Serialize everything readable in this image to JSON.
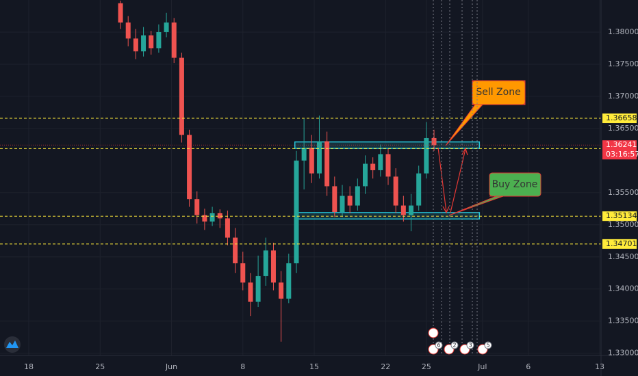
{
  "chart_data": {
    "type": "candlestick",
    "x": [
      27,
      27.75,
      28.5,
      29.25,
      30,
      30.75,
      31.5,
      32.25,
      33,
      33.75,
      34.5,
      35.25,
      36,
      36.75,
      37.5,
      38.25,
      39,
      39.75,
      40.5,
      41.25,
      42,
      42.75,
      43.5,
      44.25,
      45,
      45.75,
      46.5,
      47.25,
      48,
      48.75,
      49.5,
      50.25,
      51,
      51.75,
      52.5,
      53.25,
      54,
      54.75,
      55.5,
      56.25,
      57,
      57.75
    ],
    "open": [
      1.3845,
      1.3815,
      1.379,
      1.377,
      1.3795,
      1.3775,
      1.38,
      1.3815,
      1.376,
      1.364,
      1.354,
      1.3515,
      1.3505,
      1.3518,
      1.351,
      1.348,
      1.344,
      1.341,
      1.338,
      1.342,
      1.346,
      1.341,
      1.3385,
      1.344,
      1.36,
      1.362,
      1.358,
      1.363,
      1.356,
      1.352,
      1.3545,
      1.353,
      1.356,
      1.3595,
      1.3585,
      1.361,
      1.3575,
      1.353,
      1.3515,
      1.353,
      1.358,
      1.3635
    ],
    "high": [
      1.3849,
      1.3825,
      1.3805,
      1.3808,
      1.3802,
      1.3812,
      1.383,
      1.3822,
      1.3768,
      1.3648,
      1.3552,
      1.3525,
      1.3528,
      1.3524,
      1.3522,
      1.3495,
      1.3458,
      1.3425,
      1.3452,
      1.348,
      1.3472,
      1.3428,
      1.3455,
      1.3615,
      1.3665,
      1.364,
      1.367,
      1.3645,
      1.3575,
      1.3562,
      1.356,
      1.3572,
      1.3608,
      1.3605,
      1.3625,
      1.3618,
      1.3588,
      1.3545,
      1.3548,
      1.3592,
      1.366,
      1.3648
    ],
    "low": [
      1.3805,
      1.3778,
      1.3758,
      1.3762,
      1.3765,
      1.3768,
      1.3792,
      1.3752,
      1.3628,
      1.3528,
      1.3502,
      1.3492,
      1.3498,
      1.3495,
      1.3468,
      1.3425,
      1.3398,
      1.3358,
      1.3372,
      1.3405,
      1.3398,
      1.3318,
      1.3378,
      1.3425,
      1.3555,
      1.3565,
      1.3572,
      1.3545,
      1.3512,
      1.3512,
      1.3518,
      1.3522,
      1.3548,
      1.3572,
      1.3575,
      1.3562,
      1.3518,
      1.3505,
      1.349,
      1.3522,
      1.3572,
      1.3615
    ],
    "close": [
      1.3815,
      1.379,
      1.377,
      1.3795,
      1.3775,
      1.38,
      1.3815,
      1.376,
      1.364,
      1.354,
      1.3515,
      1.3505,
      1.3518,
      1.351,
      1.348,
      1.344,
      1.341,
      1.338,
      1.342,
      1.346,
      1.341,
      1.3385,
      1.344,
      1.36,
      1.362,
      1.358,
      1.363,
      1.356,
      1.352,
      1.3545,
      1.353,
      1.356,
      1.3595,
      1.3585,
      1.361,
      1.3575,
      1.353,
      1.3515,
      1.353,
      1.358,
      1.3635,
      1.3624
    ],
    "up_color": "#26a69a",
    "down_color": "#ef5350",
    "xlim": [
      15.18,
      74.13
    ],
    "ylim": [
      1.3289,
      1.385
    ],
    "xticks": [
      18,
      25,
      {
        "value": 32,
        "label": "Jun"
      },
      {
        "value": 39,
        "label": "8"
      },
      {
        "value": 46,
        "label": "15"
      },
      {
        "value": 53,
        "label": "22"
      },
      {
        "value": 57,
        "label": "25"
      },
      {
        "value": 62.5,
        "label": "Jul"
      },
      {
        "value": 67,
        "label": "6"
      },
      {
        "value": 74,
        "label": "13"
      }
    ],
    "yticks": [
      {
        "value": 1.38,
        "label": "1.38000"
      },
      {
        "value": 1.375,
        "label": "1.37500"
      },
      {
        "value": 1.37,
        "label": "1.37000"
      },
      {
        "value": 1.365,
        "label": "1.36500"
      },
      {
        "value": 1.355,
        "label": "1.35500"
      },
      {
        "value": 1.35,
        "label": "1.35000"
      },
      {
        "value": 1.345,
        "label": "1.34500"
      },
      {
        "value": 1.34,
        "label": "1.34000"
      },
      {
        "value": 1.335,
        "label": "1.33500"
      },
      {
        "value": 1.33,
        "label": "1.33000"
      }
    ],
    "grid": true,
    "levels": [
      1.36658,
      1.36186,
      1.35134,
      1.34701
    ],
    "level_color": "#ffeb3b",
    "current_price": 1.36241,
    "countdown": "03:16:57",
    "current_color": "#f23645",
    "zones": [
      {
        "ylim": [
          1.3619,
          1.3629
        ],
        "xlim": [
          44.1,
          62.2
        ]
      },
      {
        "ylim": [
          1.3509,
          1.3519
        ],
        "xlim": [
          44.1,
          62.2
        ]
      }
    ],
    "annotations": [
      "Sell Zone",
      "Buy Zone"
    ],
    "events": [
      6,
      2,
      3,
      5
    ]
  }
}
